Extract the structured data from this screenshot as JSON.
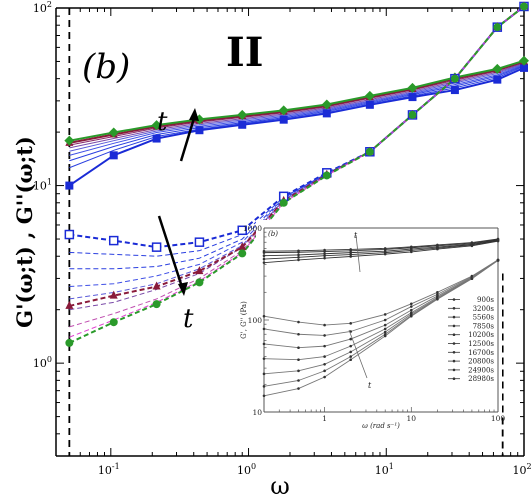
{
  "chart_data": [
    {
      "type": "line",
      "panel_label": "(b)",
      "regime_label": "II",
      "xlabel": "ω",
      "ylabel": "G'(ω;t) , G''(ω;t)",
      "x_scale": "log",
      "y_scale": "log",
      "xlim": [
        0.04,
        100
      ],
      "ylim": [
        0.3,
        100
      ],
      "x_ticks": [
        {
          "base": "10",
          "exp": "-1",
          "value": 0.1
        },
        {
          "base": "10",
          "exp": "0",
          "value": 1
        },
        {
          "base": "10",
          "exp": "1",
          "value": 10
        },
        {
          "base": "10",
          "exp": "2",
          "value": 100
        }
      ],
      "y_ticks": [
        {
          "base": "10",
          "exp": "0",
          "value": 1
        },
        {
          "base": "10",
          "exp": "1",
          "value": 10
        },
        {
          "base": "10",
          "exp": "2",
          "value": 100
        }
      ],
      "grid": false,
      "arrow_labels": [
        "t",
        "t"
      ],
      "vertical_dashed_lines_x": [
        0.05,
        70
      ],
      "x": [
        0.05,
        0.105,
        0.215,
        0.44,
        0.9,
        1.8,
        3.7,
        7.6,
        15.5,
        31.5,
        64,
        100
      ],
      "series": [
        {
          "role": "G'",
          "time_index": 1,
          "color": "#1a2bd6",
          "marker": "square-filled",
          "values": [
            10,
            14.8,
            18.4,
            20.5,
            22,
            23.5,
            25.5,
            28.5,
            31.5,
            34.5,
            39.5,
            46
          ]
        },
        {
          "role": "G'",
          "time_index": 2,
          "color": "#2a3fe0",
          "marker": "none",
          "values": [
            12.6,
            15.8,
            18.9,
            20.8,
            22.3,
            23.8,
            25.8,
            28.8,
            32,
            35.5,
            40.5,
            47
          ]
        },
        {
          "role": "G'",
          "time_index": 3,
          "color": "#2a3fe0",
          "marker": "none",
          "values": [
            13.8,
            16.6,
            19.4,
            21.2,
            22.6,
            24.1,
            26.2,
            29.2,
            32.5,
            36.3,
            41.3,
            47.5
          ]
        },
        {
          "role": "G'",
          "time_index": 4,
          "color": "#3f4fe6",
          "marker": "none",
          "values": [
            14.8,
            17.3,
            19.9,
            21.6,
            23,
            24.5,
            26.6,
            29.6,
            33,
            37,
            42,
            48
          ]
        },
        {
          "role": "G'",
          "time_index": 5,
          "color": "#5a5ad8",
          "marker": "none",
          "values": [
            15.6,
            17.9,
            20.3,
            22,
            23.4,
            24.9,
            27,
            30,
            33.5,
            37.8,
            42.8,
            48.5
          ]
        },
        {
          "role": "G'",
          "time_index": 6,
          "color": "#7a4aa8",
          "marker": "none",
          "values": [
            16.3,
            18.4,
            20.7,
            22.4,
            23.8,
            25.3,
            27.4,
            30.5,
            34,
            38.5,
            43.5,
            49
          ]
        },
        {
          "role": "G'",
          "time_index": 7,
          "color": "#8a2a6a",
          "marker": "none",
          "values": [
            16.9,
            18.9,
            21.1,
            22.8,
            24.2,
            25.7,
            27.8,
            31,
            34.5,
            39.2,
            44.2,
            49.5
          ]
        },
        {
          "role": "G'",
          "time_index": 8,
          "color": "#8a1a3a",
          "marker": "triangle-filled",
          "values": [
            17.4,
            19.4,
            21.5,
            23.2,
            24.6,
            26.1,
            28.2,
            31.5,
            35,
            40,
            44.8,
            50
          ]
        },
        {
          "role": "G'",
          "time_index": 9,
          "color": "#2a9a2a",
          "marker": "diamond-filled",
          "values": [
            17.9,
            19.9,
            21.9,
            23.6,
            25,
            26.5,
            28.6,
            32,
            35.5,
            40.6,
            45.4,
            50.5
          ]
        },
        {
          "role": "G''",
          "time_index": 1,
          "color": "#1a2bd6",
          "marker": "square-open",
          "values": [
            5.3,
            4.9,
            4.5,
            4.8,
            5.6,
            8.7,
            11.8,
            15.5,
            25,
            40,
            78,
            102
          ]
        },
        {
          "role": "G''",
          "time_index": 2,
          "color": "#2a3fe0",
          "marker": "none",
          "values": [
            4.2,
            4.1,
            4.0,
            4.3,
            5.3,
            8.6,
            11.7,
            15.5,
            25,
            40,
            78,
            102
          ]
        },
        {
          "role": "G''",
          "time_index": 3,
          "color": "#2a3fe0",
          "marker": "none",
          "values": [
            3.4,
            3.4,
            3.5,
            3.9,
            5.0,
            8.5,
            11.7,
            15.5,
            25,
            40,
            78,
            102
          ]
        },
        {
          "role": "G''",
          "time_index": 4,
          "color": "#3f4fe6",
          "marker": "none",
          "values": [
            2.7,
            2.8,
            3.1,
            3.6,
            4.8,
            8.4,
            11.6,
            15.5,
            25,
            40,
            78,
            102
          ]
        },
        {
          "role": "G''",
          "time_index": 5,
          "color": "#5a5ad8",
          "marker": "none",
          "values": [
            2.3,
            2.5,
            2.8,
            3.4,
            4.6,
            8.3,
            11.6,
            15.5,
            25,
            40,
            78,
            102
          ]
        },
        {
          "role": "G''",
          "time_index": 6,
          "color": "#7a4aa8",
          "marker": "none",
          "values": [
            2.0,
            2.2,
            2.6,
            3.2,
            4.5,
            8.2,
            11.5,
            15.5,
            25,
            40,
            78,
            102
          ]
        },
        {
          "role": "G''",
          "time_index": 7,
          "color": "#8a1a3a",
          "marker": "triangle-filled",
          "values": [
            2.1,
            2.4,
            2.7,
            3.3,
            4.5,
            8.2,
            11.5,
            15.5,
            25,
            40,
            78,
            102
          ]
        },
        {
          "role": "G''",
          "time_index": 8,
          "color": "#c050b0",
          "marker": "none",
          "values": [
            1.6,
            1.9,
            2.3,
            3.0,
            4.3,
            8.1,
            11.4,
            15.5,
            25,
            40,
            78,
            102
          ]
        },
        {
          "role": "G''",
          "time_index": 9,
          "color": "#e040d0",
          "marker": "none",
          "values": [
            1.4,
            1.75,
            2.2,
            2.9,
            4.2,
            8.0,
            11.4,
            15.5,
            25,
            40,
            78,
            102
          ]
        },
        {
          "role": "G''",
          "time_index": 10,
          "color": "#2a9a2a",
          "marker": "circle-filled",
          "values": [
            1.3,
            1.7,
            2.15,
            2.85,
            4.15,
            8.0,
            11.4,
            15.5,
            25,
            40,
            78,
            102
          ]
        }
      ]
    },
    {
      "type": "line",
      "inset": true,
      "panel_label": "(b)",
      "xlabel": "ω (rad s⁻¹)",
      "ylabel": "G', G'' (Pa)",
      "x_scale": "log",
      "y_scale": "log",
      "xlim": [
        0.2,
        100
      ],
      "ylim": [
        10,
        1000
      ],
      "x_ticks": [
        "1",
        "10",
        "100"
      ],
      "y_ticks": [
        "1000",
        "100",
        "10"
      ],
      "arrow_labels": [
        "t",
        "t"
      ],
      "legend": [
        "900s",
        "3200s",
        "5560s",
        "7850s",
        "10200s",
        "12500s",
        "16700s",
        "20800s",
        "24900s",
        "28980s"
      ],
      "legend_position": "right",
      "x": [
        0.2,
        0.5,
        1,
        2,
        5,
        10,
        20,
        50,
        100
      ],
      "series": [
        {
          "role": "G'",
          "values": [
            420,
            450,
            470,
            490,
            520,
            550,
            590,
            640,
            720
          ]
        },
        {
          "role": "G'",
          "values": [
            460,
            480,
            500,
            515,
            540,
            570,
            605,
            655,
            730
          ]
        },
        {
          "role": "G'",
          "values": [
            500,
            510,
            525,
            540,
            560,
            590,
            620,
            665,
            740
          ]
        },
        {
          "role": "G'",
          "values": [
            540,
            545,
            555,
            565,
            585,
            610,
            640,
            680,
            750
          ]
        },
        {
          "role": "G'",
          "values": [
            560,
            565,
            575,
            585,
            600,
            625,
            655,
            695,
            760
          ]
        },
        {
          "role": "G''",
          "values": [
            110,
            95,
            88,
            92,
            115,
            150,
            200,
            300,
            450
          ]
        },
        {
          "role": "G''",
          "values": [
            80,
            70,
            68,
            75,
            100,
            140,
            190,
            295,
            450
          ]
        },
        {
          "role": "G''",
          "values": [
            55,
            50,
            52,
            62,
            88,
            128,
            182,
            290,
            448
          ]
        },
        {
          "role": "G''",
          "values": [
            38,
            37,
            40,
            52,
            80,
            120,
            176,
            286,
            446
          ]
        },
        {
          "role": "G''",
          "values": [
            26,
            28,
            33,
            45,
            74,
            116,
            172,
            284,
            445
          ]
        },
        {
          "role": "G''",
          "values": [
            19,
            22,
            28,
            40,
            70,
            112,
            170,
            282,
            444
          ]
        },
        {
          "role": "G''",
          "values": [
            15,
            18,
            24,
            37,
            67,
            110,
            168,
            281,
            444
          ]
        }
      ]
    }
  ]
}
